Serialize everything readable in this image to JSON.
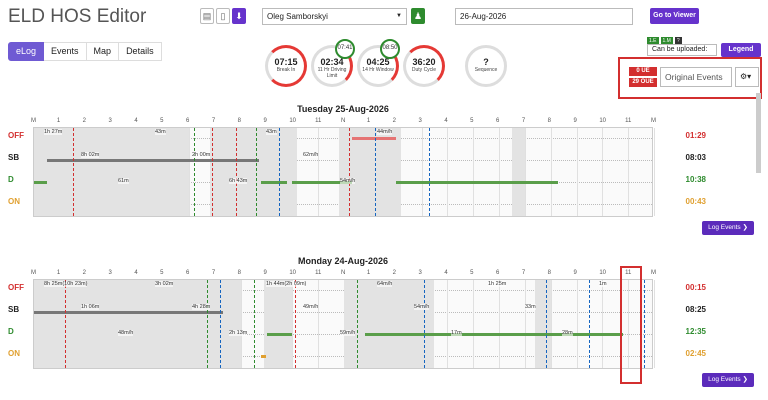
{
  "app": {
    "title": "ELD HOS Editor"
  },
  "header": {
    "driver": "Oleg Samborskyi",
    "date": "26-Aug-2026",
    "go_viewer": "Go to Viewer"
  },
  "tabs": [
    {
      "label": "eLog"
    },
    {
      "label": "Events"
    },
    {
      "label": "Map"
    },
    {
      "label": "Details"
    }
  ],
  "gauges": [
    {
      "value": "07:15",
      "label": "Break In",
      "color": "#e53935"
    },
    {
      "value": "02:34",
      "label": "11 Hr Driving Limit",
      "color": "#e53935",
      "badge": "07:41"
    },
    {
      "value": "04:25",
      "label": "14 Hr Window",
      "color": "#e53935",
      "badge": "08:50"
    },
    {
      "value": "36:20",
      "label": "Duty Cycle",
      "color": "#e53935"
    },
    {
      "value": "?",
      "label": "Sequence",
      "color": "#ddd"
    }
  ],
  "right_panel": {
    "chips": [
      "1.E",
      "1.M",
      "?"
    ],
    "can_upload": "Can be uploaded:",
    "legend": "Legend",
    "ue": "0 UE",
    "oue": "29 OUE",
    "original_events": "Original Events"
  },
  "row_labels": [
    "OFF",
    "SB",
    "D",
    "ON"
  ],
  "hours": [
    "M",
    "1",
    "2",
    "3",
    "4",
    "5",
    "6",
    "7",
    "8",
    "9",
    "10",
    "11",
    "N",
    "1",
    "2",
    "3",
    "4",
    "5",
    "6",
    "7",
    "8",
    "9",
    "10",
    "11",
    "M"
  ],
  "days": [
    {
      "title": "Tuesday 25-Aug-2026",
      "totals": [
        "01:29",
        "08:03",
        "10:38",
        "00:43"
      ],
      "notes": [
        "1h 27m",
        "8h 02m",
        "61m",
        "43m",
        "2h 00m",
        "6h 43m",
        "43m",
        "62m/h",
        "54m/h",
        "44m/h"
      ]
    },
    {
      "title": "Monday 24-Aug-2026",
      "totals": [
        "00:15",
        "08:25",
        "12:35",
        "02:45"
      ],
      "notes": [
        "8h 25m(10h 23m)",
        "1h 06m",
        "48m/h",
        "3h 02m",
        "4h 28m",
        "2h 13m",
        "1h 44m(2h 09m)",
        "49m/h",
        "59m/h",
        "64m/h",
        "54m/h",
        "17m",
        "1h 25m",
        "33m",
        "28m",
        "1m"
      ]
    }
  ],
  "log_events": "Log Events"
}
